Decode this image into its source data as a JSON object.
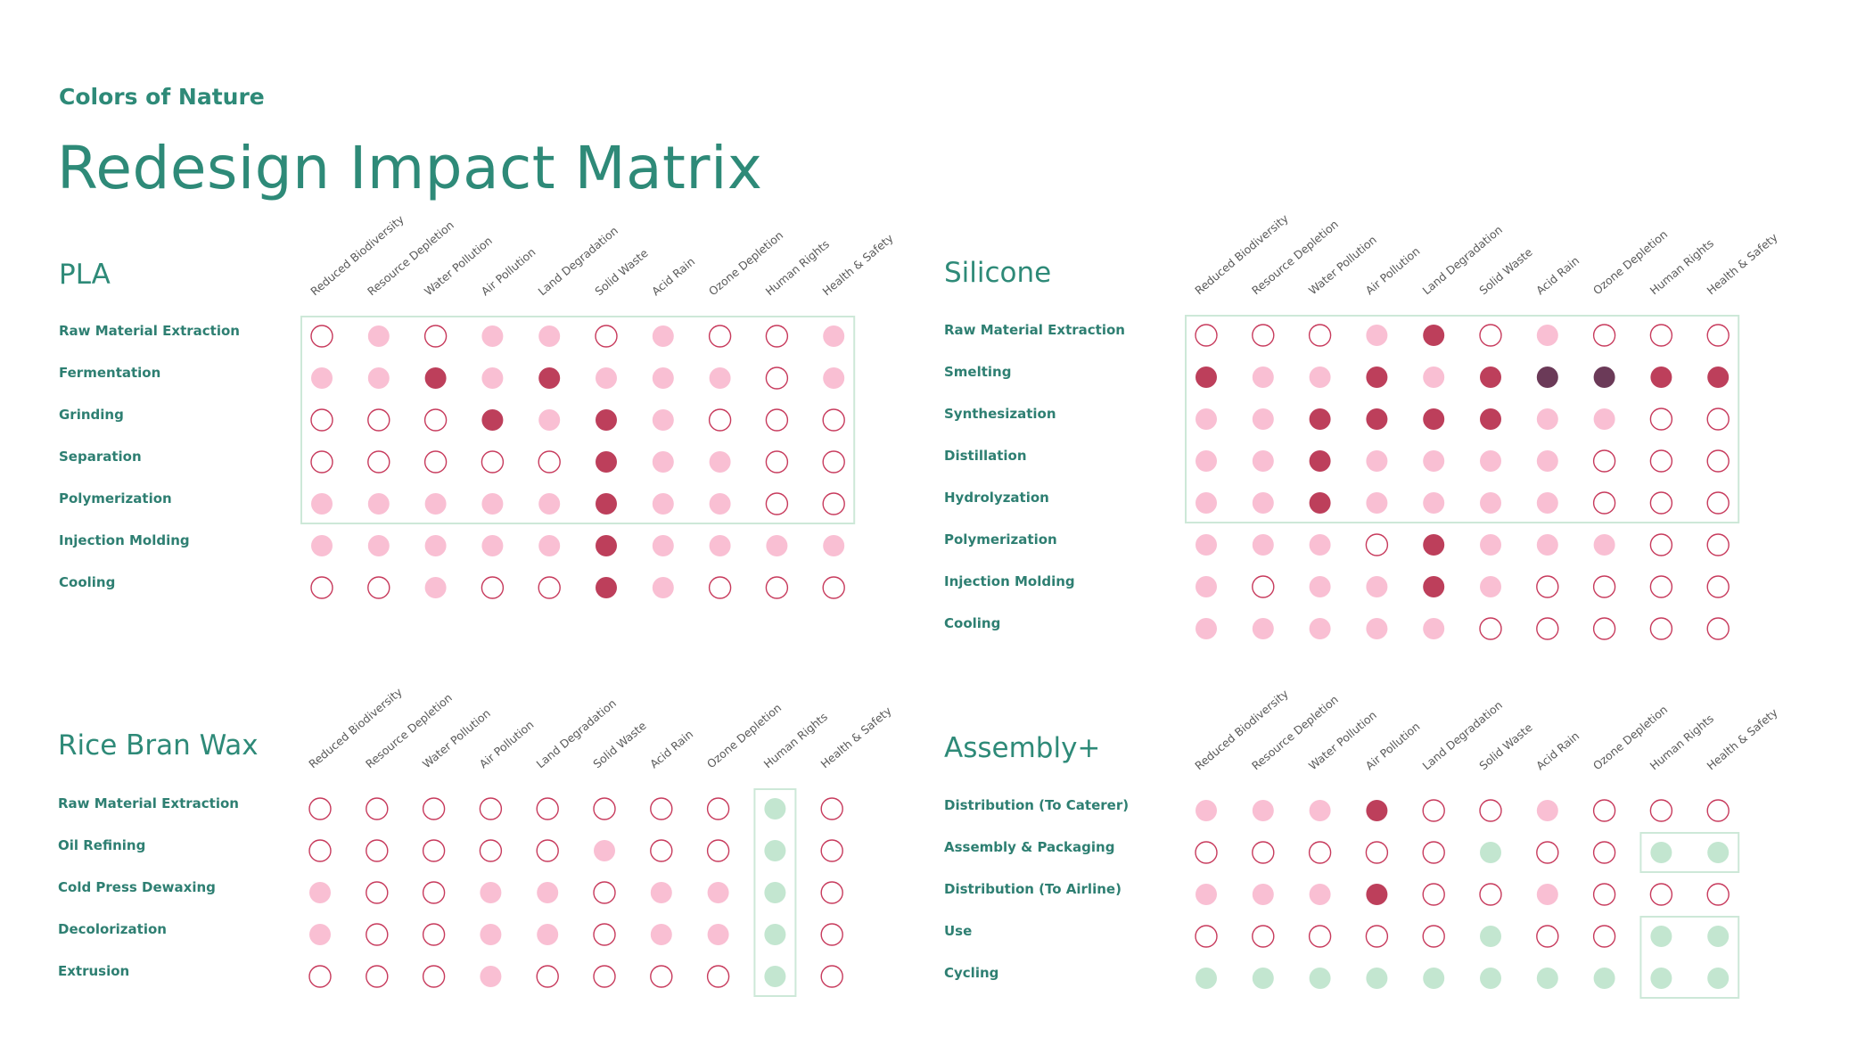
{
  "header": {
    "eyebrow": "Colors of Nature",
    "title": "Redesign Impact Matrix"
  },
  "colors": {
    "accent": "#2e8a78",
    "label": "#2e7f72",
    "axis_text": "#5a5a5a",
    "light": "#f9bfd3",
    "dark": "#bd3f5b",
    "darkest": "#6b3a58",
    "empty": "#c73a5c",
    "green": "#c3e6d0",
    "box": "#cde8d8"
  },
  "legend_codes": {
    "e": "empty",
    "l": "light",
    "d": "dark",
    "x": "darkest",
    "g": "green"
  },
  "matrices": [
    {
      "name": "PLA",
      "columns": [
        "Reduced Biodiversity",
        "Resource Depletion",
        "Water Pollution",
        "Air Pollution",
        "Land Degradation",
        "Solid Waste",
        "Acid Rain",
        "Ozone Depletion",
        "Human Rights",
        "Health & Safety"
      ],
      "rows": [
        {
          "label": "Raw Material Extraction",
          "cells": "elelleleel"
        },
        {
          "label": "Fermentation",
          "cells": "lldldlllel"
        },
        {
          "label": "Grinding",
          "cells": "eeedldleee"
        },
        {
          "label": "Separation",
          "cells": "eeeeedllee"
        },
        {
          "label": "Polymerization",
          "cells": "llllldllee"
        },
        {
          "label": "Injection Molding",
          "cells": "llllldllll"
        },
        {
          "label": "Cooling",
          "cells": "eeleedleee"
        }
      ],
      "highlight_boxes": [
        {
          "row_start": 0,
          "row_end": 4,
          "col_start": 0,
          "col_end": 9
        }
      ]
    },
    {
      "name": "Silicone",
      "columns": [
        "Reduced Biodiversity",
        "Resource Depletion",
        "Water Pollution",
        "Air Pollution",
        "Land Degradation",
        "Solid Waste",
        "Acid Rain",
        "Ozone Depletion",
        "Human Rights",
        "Health & Safety"
      ],
      "rows": [
        {
          "label": "Raw Material Extraction",
          "cells": "eeeldeleee"
        },
        {
          "label": "Smelting",
          "cells": "dlldldxxdd"
        },
        {
          "label": "Synthesization",
          "cells": "llddddllee"
        },
        {
          "label": "Distillation",
          "cells": "lldlllleee"
        },
        {
          "label": "Hydrolyzation",
          "cells": "lldlllleee"
        },
        {
          "label": "Polymerization",
          "cells": "llledlllee"
        },
        {
          "label": "Injection Molding",
          "cells": "lelldleeee"
        },
        {
          "label": "Cooling",
          "cells": "llllleeeee"
        }
      ],
      "highlight_boxes": [
        {
          "row_start": 0,
          "row_end": 4,
          "col_start": 0,
          "col_end": 9
        }
      ]
    },
    {
      "name": "Rice Bran Wax",
      "columns": [
        "Reduced Biodiversity",
        "Resource Depletion",
        "Water Pollution",
        "Air Pollution",
        "Land Degradation",
        "Solid Waste",
        "Acid Rain",
        "Ozone Depletion",
        "Human Rights",
        "Health & Safety"
      ],
      "rows": [
        {
          "label": "Raw Material Extraction",
          "cells": "eeeeeeeege"
        },
        {
          "label": "Oil Refining",
          "cells": "eeeeeleege"
        },
        {
          "label": "Cold Press Dewaxing",
          "cells": "leellellge"
        },
        {
          "label": "Decolorization",
          "cells": "leellellge"
        },
        {
          "label": "Extrusion",
          "cells": "eeeleeeege"
        }
      ],
      "highlight_boxes": [
        {
          "row_start": 0,
          "row_end": 4,
          "col_start": 8,
          "col_end": 8
        }
      ]
    },
    {
      "name": "Assembly+",
      "columns": [
        "Reduced Biodiversity",
        "Resource Depletion",
        "Water Pollution",
        "Air Pollution",
        "Land Degradation",
        "Solid Waste",
        "Acid Rain",
        "Ozone Depletion",
        "Human Rights",
        "Health & Safety"
      ],
      "rows": [
        {
          "label": "Distribution (To Caterer)",
          "cells": "llldeeleee"
        },
        {
          "label": "Assembly & Packaging",
          "cells": "eeeeegeegg"
        },
        {
          "label": "Distribution (To Airline)",
          "cells": "llldeeleee"
        },
        {
          "label": "Use",
          "cells": "eeeeegeegg"
        },
        {
          "label": "Cycling",
          "cells": "gggggggggg"
        }
      ],
      "highlight_boxes": [
        {
          "row_start": 1,
          "row_end": 1,
          "col_start": 8,
          "col_end": 9
        },
        {
          "row_start": 3,
          "row_end": 4,
          "col_start": 8,
          "col_end": 9
        }
      ]
    }
  ]
}
